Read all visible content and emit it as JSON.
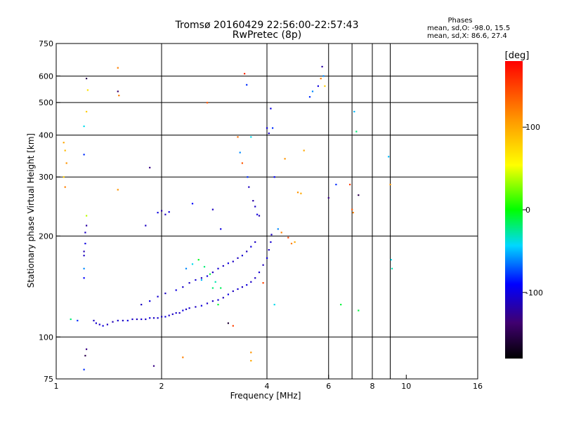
{
  "chart_data": {
    "type": "scatter",
    "title": "Tromsø 20160429 22:56:00-22:57:43",
    "subtitle": "RwPretec (8p)",
    "xlabel": "Frequency [MHz]",
    "ylabel": "Stationary phase Virtual Height [km]",
    "x_scale": "log",
    "y_scale": "log",
    "xlim": [
      1,
      16
    ],
    "ylim": [
      75,
      750
    ],
    "x_ticks": [
      1,
      2,
      4,
      6,
      8,
      10,
      16
    ],
    "y_ticks": [
      75,
      100,
      200,
      300,
      400,
      500,
      600,
      750
    ],
    "x_grid": [
      2,
      4,
      6,
      7,
      8,
      9
    ],
    "y_grid": [
      100,
      200,
      300,
      400,
      500,
      600
    ],
    "stats": {
      "heading": "Phases",
      "line1": "mean, sd,O: -98.0, 15.5",
      "line2": "mean, sd,X:  86.6, 27.4"
    },
    "colorbar": {
      "label": "[deg]",
      "range": [
        -180,
        180
      ],
      "ticks": [
        100,
        0,
        -100
      ]
    },
    "series": [
      {
        "points": [
          [
            1.28,
            112,
            -110
          ],
          [
            1.3,
            110,
            -105
          ],
          [
            1.33,
            109,
            -110
          ],
          [
            1.36,
            108,
            -100
          ],
          [
            1.4,
            109,
            -110
          ],
          [
            1.45,
            111,
            -115
          ],
          [
            1.5,
            112,
            -105
          ],
          [
            1.55,
            112,
            -110
          ],
          [
            1.6,
            112,
            -100
          ],
          [
            1.65,
            113,
            -108
          ],
          [
            1.7,
            113,
            -112
          ],
          [
            1.75,
            113,
            -105
          ],
          [
            1.8,
            113,
            -110
          ],
          [
            1.85,
            114,
            -100
          ],
          [
            1.9,
            114,
            -110
          ],
          [
            1.95,
            114,
            -105
          ],
          [
            2.0,
            115,
            -112
          ],
          [
            2.05,
            115,
            -100
          ],
          [
            2.1,
            116,
            -108
          ],
          [
            2.15,
            117,
            -110
          ],
          [
            2.2,
            118,
            -105
          ],
          [
            2.25,
            118,
            -112
          ],
          [
            2.3,
            120,
            -100
          ],
          [
            2.35,
            121,
            -110
          ],
          [
            2.4,
            122,
            -105
          ],
          [
            2.5,
            123,
            -110
          ],
          [
            2.6,
            124,
            -100
          ],
          [
            2.7,
            126,
            -108
          ],
          [
            2.8,
            128,
            -110
          ],
          [
            2.9,
            129,
            -105
          ],
          [
            3.0,
            131,
            -112
          ],
          [
            3.1,
            134,
            -100
          ],
          [
            3.2,
            137,
            -110
          ],
          [
            3.3,
            139,
            -105
          ],
          [
            3.4,
            141,
            -110
          ],
          [
            3.5,
            143,
            -100
          ],
          [
            3.6,
            146,
            -108
          ],
          [
            3.7,
            150,
            -110
          ],
          [
            3.8,
            156,
            -105
          ],
          [
            3.9,
            164,
            -112
          ],
          [
            4.0,
            172,
            -100
          ],
          [
            4.05,
            182,
            -110
          ],
          [
            4.1,
            192,
            -105
          ],
          [
            4.12,
            202,
            -110
          ],
          [
            1.75,
            125,
            -110
          ],
          [
            1.85,
            128,
            -100
          ],
          [
            1.95,
            132,
            -105
          ],
          [
            2.05,
            135,
            -110
          ],
          [
            2.2,
            138,
            -100
          ],
          [
            2.3,
            141,
            -108
          ],
          [
            2.4,
            145,
            -110
          ],
          [
            2.5,
            148,
            -105
          ],
          [
            2.6,
            150,
            -112
          ],
          [
            2.7,
            152,
            -100
          ],
          [
            2.8,
            156,
            -110
          ],
          [
            2.9,
            160,
            -105
          ],
          [
            3.0,
            163,
            -110
          ],
          [
            3.1,
            166,
            -100
          ],
          [
            3.2,
            168,
            -108
          ],
          [
            3.3,
            172,
            -110
          ],
          [
            3.4,
            175,
            -105
          ],
          [
            3.5,
            180,
            -112
          ],
          [
            3.6,
            186,
            -100
          ],
          [
            3.7,
            192,
            -110
          ],
          [
            2.55,
            170,
            -5
          ],
          [
            2.65,
            162,
            -20
          ],
          [
            2.75,
            154,
            -10
          ],
          [
            2.85,
            146,
            -30
          ],
          [
            2.95,
            140,
            -15
          ],
          [
            2.35,
            160,
            -60
          ],
          [
            2.45,
            165,
            -40
          ],
          [
            2.6,
            148,
            -50
          ],
          [
            2.8,
            140,
            -20
          ],
          [
            2.9,
            125,
            -10
          ],
          [
            1.1,
            113,
            -20
          ],
          [
            1.15,
            112,
            -80
          ],
          [
            1.2,
            150,
            -90
          ],
          [
            1.2,
            160,
            -60
          ],
          [
            1.2,
            175,
            -110
          ],
          [
            1.2,
            180,
            -115
          ],
          [
            1.21,
            190,
            -100
          ],
          [
            1.21,
            205,
            -110
          ],
          [
            1.22,
            215,
            -120
          ],
          [
            1.22,
            230,
            40
          ],
          [
            1.2,
            350,
            -80
          ],
          [
            1.2,
            425,
            -40
          ],
          [
            1.22,
            470,
            80
          ],
          [
            1.23,
            545,
            70
          ],
          [
            1.22,
            590,
            -150
          ],
          [
            1.21,
            88,
            -150
          ],
          [
            1.2,
            80,
            -80
          ],
          [
            1.22,
            92,
            -130
          ],
          [
            1.05,
            380,
            100
          ],
          [
            1.06,
            360,
            90
          ],
          [
            1.07,
            330,
            110
          ],
          [
            1.05,
            300,
            80
          ],
          [
            1.06,
            280,
            120
          ],
          [
            1.5,
            540,
            -140
          ],
          [
            1.51,
            525,
            120
          ],
          [
            1.5,
            275,
            110
          ],
          [
            1.5,
            635,
            120
          ],
          [
            1.8,
            215,
            -110
          ],
          [
            1.85,
            320,
            -130
          ],
          [
            1.9,
            82,
            -130
          ],
          [
            1.95,
            235,
            -100
          ],
          [
            2.0,
            238,
            -120
          ],
          [
            2.05,
            232,
            -110
          ],
          [
            2.1,
            236,
            -100
          ],
          [
            2.45,
            250,
            -90
          ],
          [
            2.7,
            500,
            140
          ],
          [
            2.8,
            240,
            -110
          ],
          [
            2.95,
            210,
            -100
          ],
          [
            3.1,
            110,
            -160
          ],
          [
            3.2,
            108,
            150
          ],
          [
            3.3,
            395,
            130
          ],
          [
            3.35,
            355,
            -60
          ],
          [
            3.4,
            330,
            140
          ],
          [
            3.45,
            610,
            160
          ],
          [
            3.5,
            565,
            -80
          ],
          [
            3.52,
            300,
            -80
          ],
          [
            3.55,
            280,
            -110
          ],
          [
            3.6,
            395,
            -40
          ],
          [
            3.65,
            255,
            -120
          ],
          [
            3.7,
            245,
            -110
          ],
          [
            3.75,
            232,
            -100
          ],
          [
            3.8,
            230,
            -115
          ],
          [
            3.9,
            145,
            150
          ],
          [
            4.0,
            420,
            -100
          ],
          [
            4.05,
            405,
            -110
          ],
          [
            4.1,
            480,
            -100
          ],
          [
            4.15,
            420,
            -80
          ],
          [
            4.2,
            300,
            -90
          ],
          [
            4.3,
            210,
            -60
          ],
          [
            4.4,
            205,
            120
          ],
          [
            4.5,
            340,
            110
          ],
          [
            4.6,
            198,
            150
          ],
          [
            4.7,
            190,
            120
          ],
          [
            4.8,
            192,
            100
          ],
          [
            4.9,
            270,
            110
          ],
          [
            5.0,
            268,
            100
          ],
          [
            5.1,
            360,
            100
          ],
          [
            5.3,
            520,
            -80
          ],
          [
            5.4,
            540,
            -60
          ],
          [
            5.6,
            560,
            -100
          ],
          [
            5.7,
            590,
            120
          ],
          [
            5.75,
            640,
            -120
          ],
          [
            5.8,
            600,
            -60
          ],
          [
            5.85,
            560,
            80
          ],
          [
            6.0,
            260,
            -130
          ],
          [
            6.3,
            285,
            -80
          ],
          [
            6.5,
            125,
            -10
          ],
          [
            6.9,
            285,
            150
          ],
          [
            7.0,
            240,
            140
          ],
          [
            7.05,
            235,
            120
          ],
          [
            7.1,
            470,
            -50
          ],
          [
            7.2,
            410,
            -20
          ],
          [
            7.3,
            265,
            -150
          ],
          [
            7.3,
            120,
            -10
          ],
          [
            8.9,
            345,
            -50
          ],
          [
            9.0,
            285,
            110
          ],
          [
            9.05,
            170,
            -40
          ],
          [
            9.1,
            160,
            -30
          ],
          [
            3.6,
            85,
            100
          ],
          [
            3.6,
            90,
            110
          ],
          [
            2.3,
            87,
            120
          ],
          [
            4.2,
            125,
            -40
          ]
        ]
      }
    ]
  }
}
